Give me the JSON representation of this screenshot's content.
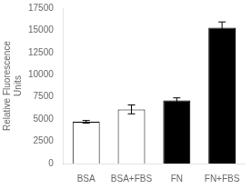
{
  "chart_data": {
    "type": "bar",
    "categories": [
      "BSA",
      "BSA+FBS",
      "FN",
      "FN+FBS"
    ],
    "values": [
      4700,
      6100,
      7100,
      15300
    ],
    "errors": [
      150,
      500,
      300,
      650
    ],
    "colors": [
      "white",
      "white",
      "black",
      "black"
    ],
    "ylabel": "Relative Fluorescence\nUnits",
    "ylim": [
      0,
      17500
    ],
    "yticks": [
      0,
      2500,
      5000,
      7500,
      10000,
      12500,
      15000,
      17500
    ],
    "grid": false
  }
}
